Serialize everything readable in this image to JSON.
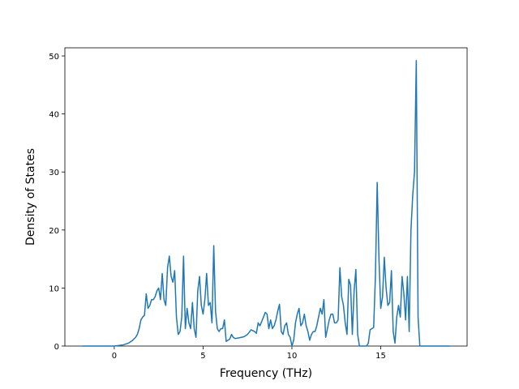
{
  "chart_data": {
    "type": "line",
    "x_label": "Frequency (THz)",
    "y_label": "Density of States",
    "xlim": [
      -2.78,
      19.86
    ],
    "ylim": [
      0,
      51.4
    ],
    "xticks": [
      0,
      5,
      10,
      15
    ],
    "yticks": [
      0,
      10,
      20,
      30,
      40,
      50
    ],
    "series": [
      {
        "color": "#1f77b4",
        "x": [
          -1.8,
          -1,
          0,
          0.5,
          0.8,
          1.0,
          1.2,
          1.3,
          1.4,
          1.5,
          1.6,
          1.7,
          1.8,
          1.9,
          2.0,
          2.1,
          2.2,
          2.3,
          2.4,
          2.5,
          2.6,
          2.7,
          2.8,
          2.9,
          3.0,
          3.1,
          3.2,
          3.3,
          3.4,
          3.5,
          3.6,
          3.7,
          3.8,
          3.9,
          4.0,
          4.1,
          4.2,
          4.3,
          4.4,
          4.5,
          4.6,
          4.7,
          4.8,
          4.9,
          5.0,
          5.1,
          5.2,
          5.3,
          5.4,
          5.5,
          5.6,
          5.7,
          5.8,
          5.9,
          6.0,
          6.1,
          6.2,
          6.3,
          6.4,
          6.5,
          6.6,
          6.7,
          6.8,
          7.0,
          7.3,
          7.5,
          7.7,
          7.9,
          8.0,
          8.1,
          8.2,
          8.4,
          8.5,
          8.6,
          8.7,
          8.8,
          8.9,
          9.0,
          9.1,
          9.2,
          9.3,
          9.4,
          9.5,
          9.6,
          9.7,
          9.8,
          9.9,
          10.0,
          10.1,
          10.2,
          10.3,
          10.4,
          10.5,
          10.6,
          10.7,
          10.8,
          10.9,
          11.0,
          11.1,
          11.2,
          11.3,
          11.4,
          11.5,
          11.6,
          11.7,
          11.8,
          11.9,
          12.0,
          12.1,
          12.2,
          12.3,
          12.4,
          12.5,
          12.6,
          12.7,
          12.8,
          12.9,
          13.0,
          13.1,
          13.2,
          13.3,
          13.4,
          13.5,
          13.6,
          13.7,
          13.8,
          14.0,
          14.2,
          14.3,
          14.4,
          14.5,
          14.6,
          14.7,
          14.8,
          14.9,
          15.0,
          15.1,
          15.2,
          15.3,
          15.4,
          15.5,
          15.6,
          15.7,
          15.8,
          15.9,
          16.0,
          16.1,
          16.2,
          16.3,
          16.4,
          16.5,
          16.6,
          16.7,
          16.8,
          16.9,
          17.0,
          17.1,
          17.2,
          18.9
        ],
        "values": [
          0,
          0,
          0,
          0.2,
          0.5,
          0.9,
          1.5,
          2,
          3,
          4.5,
          5,
          5.3,
          9,
          6.5,
          7,
          8,
          8,
          8.5,
          9.5,
          10,
          8,
          12.5,
          8,
          7,
          13.5,
          15.5,
          12,
          11,
          13,
          5,
          2,
          2.5,
          5,
          15.5,
          3,
          6.5,
          4,
          3,
          7.5,
          3,
          1.5,
          9.5,
          12,
          7,
          5.5,
          8,
          12.5,
          7,
          7.5,
          4,
          17.3,
          6,
          3,
          2.5,
          3,
          3,
          4.5,
          0.8,
          1,
          1.2,
          2,
          1.5,
          1.3,
          1.4,
          1.6,
          2,
          2.8,
          2.5,
          2.2,
          4,
          3.5,
          5,
          5.8,
          5.5,
          3,
          4.5,
          3,
          3.5,
          4.5,
          6,
          7.2,
          2.5,
          2,
          3.5,
          4,
          2,
          1.5,
          0,
          1,
          4,
          5.5,
          6.5,
          3.5,
          4,
          5.5,
          3.5,
          2.5,
          1,
          2,
          2.5,
          2.5,
          3.5,
          5,
          6.5,
          5.5,
          8,
          1.5,
          3,
          4.5,
          5.5,
          5.5,
          4,
          4,
          4.5,
          13.5,
          8.5,
          7,
          4,
          2,
          11.5,
          10.5,
          2,
          9.5,
          13.2,
          2,
          0,
          0,
          0,
          0.5,
          2.8,
          3,
          3.2,
          12,
          28.2,
          15,
          6.5,
          8.5,
          15.3,
          10,
          7,
          7.5,
          13,
          2.5,
          0.5,
          5,
          7,
          5,
          12,
          9,
          4.5,
          12,
          2.5,
          20,
          26,
          30,
          49.2,
          5,
          0,
          0
        ]
      }
    ]
  }
}
